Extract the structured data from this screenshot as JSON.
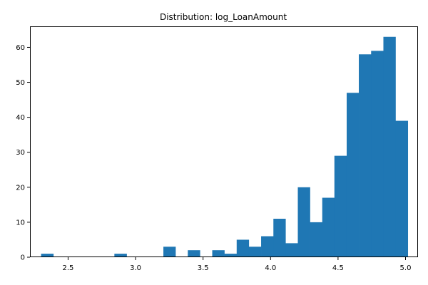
{
  "chart_data": {
    "type": "bar",
    "title": "Distribution: log_LoanAmount",
    "xlabel": "",
    "ylabel": "",
    "bar_color": "#1f77b4",
    "xlim": [
      2.2175,
      5.0925
    ],
    "ylim": [
      0,
      66
    ],
    "xticks": [
      "2.5",
      "3.0",
      "3.5",
      "4.0",
      "4.5",
      "5.0"
    ],
    "yticks": [
      "0",
      "10",
      "20",
      "30",
      "40",
      "50",
      "60"
    ],
    "grid": false,
    "legend": "none",
    "bins": [
      {
        "x0": 2.3,
        "x1": 2.391,
        "count": 1
      },
      {
        "x0": 2.391,
        "x1": 2.481,
        "count": 0
      },
      {
        "x0": 2.481,
        "x1": 2.572,
        "count": 0
      },
      {
        "x0": 2.572,
        "x1": 2.662,
        "count": 0
      },
      {
        "x0": 2.662,
        "x1": 2.753,
        "count": 0
      },
      {
        "x0": 2.753,
        "x1": 2.843,
        "count": 0
      },
      {
        "x0": 2.843,
        "x1": 2.934,
        "count": 1
      },
      {
        "x0": 2.934,
        "x1": 3.024,
        "count": 0
      },
      {
        "x0": 3.024,
        "x1": 3.115,
        "count": 0
      },
      {
        "x0": 3.115,
        "x1": 3.206,
        "count": 0
      },
      {
        "x0": 3.206,
        "x1": 3.296,
        "count": 3
      },
      {
        "x0": 3.296,
        "x1": 3.387,
        "count": 0
      },
      {
        "x0": 3.387,
        "x1": 3.477,
        "count": 2
      },
      {
        "x0": 3.477,
        "x1": 3.568,
        "count": 0
      },
      {
        "x0": 3.568,
        "x1": 3.658,
        "count": 2
      },
      {
        "x0": 3.658,
        "x1": 3.749,
        "count": 1
      },
      {
        "x0": 3.749,
        "x1": 3.839,
        "count": 5
      },
      {
        "x0": 3.839,
        "x1": 3.93,
        "count": 3
      },
      {
        "x0": 3.93,
        "x1": 4.021,
        "count": 6
      },
      {
        "x0": 4.021,
        "x1": 4.111,
        "count": 11
      },
      {
        "x0": 4.111,
        "x1": 4.202,
        "count": 4
      },
      {
        "x0": 4.202,
        "x1": 4.292,
        "count": 20
      },
      {
        "x0": 4.292,
        "x1": 4.383,
        "count": 10
      },
      {
        "x0": 4.383,
        "x1": 4.473,
        "count": 17
      },
      {
        "x0": 4.473,
        "x1": 4.564,
        "count": 29
      },
      {
        "x0": 4.564,
        "x1": 4.654,
        "count": 47
      },
      {
        "x0": 4.654,
        "x1": 4.745,
        "count": 58
      },
      {
        "x0": 4.745,
        "x1": 4.836,
        "count": 59
      },
      {
        "x0": 4.836,
        "x1": 4.926,
        "count": 63
      },
      {
        "x0": 4.926,
        "x1": 5.017,
        "count": 39
      }
    ]
  }
}
